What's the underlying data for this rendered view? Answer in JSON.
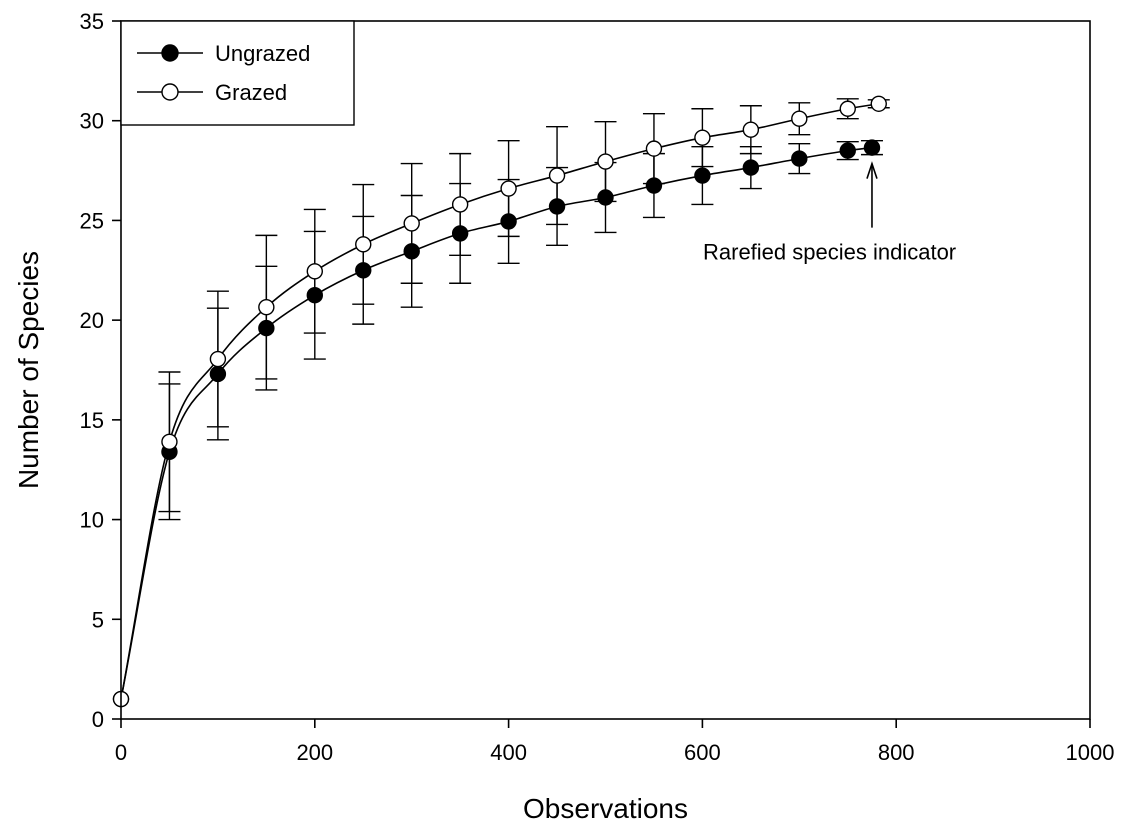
{
  "chart_data": {
    "type": "line",
    "xlabel": "Observations",
    "ylabel": "Number of Species",
    "xlim": [
      0,
      1000
    ],
    "ylim": [
      0,
      35
    ],
    "xticks": [
      0,
      200,
      400,
      600,
      800,
      1000
    ],
    "yticks": [
      0,
      5,
      10,
      15,
      20,
      25,
      30,
      35
    ],
    "grid": false,
    "legend_position": "top-left",
    "series": [
      {
        "name": "Ungrazed",
        "marker": "filled-circle",
        "x": [
          0,
          50,
          100,
          150,
          200,
          250,
          300,
          350,
          400,
          450,
          500,
          550,
          600,
          650,
          700,
          750,
          775
        ],
        "y": [
          1,
          13.4,
          17.3,
          19.6,
          21.25,
          22.5,
          23.45,
          24.35,
          24.95,
          25.7,
          26.15,
          26.75,
          27.25,
          27.65,
          28.1,
          28.5,
          28.65
        ],
        "err": [
          0,
          3.4,
          3.3,
          3.1,
          3.2,
          2.7,
          2.8,
          2.5,
          2.1,
          1.95,
          1.75,
          1.6,
          1.45,
          1.05,
          0.75,
          0.45,
          0.35
        ]
      },
      {
        "name": "Grazed",
        "marker": "open-circle",
        "x": [
          0,
          50,
          100,
          150,
          200,
          250,
          300,
          350,
          400,
          450,
          500,
          550,
          600,
          650,
          700,
          750,
          782
        ],
        "y": [
          1,
          13.9,
          18.05,
          20.65,
          22.45,
          23.8,
          24.85,
          25.8,
          26.6,
          27.25,
          27.95,
          28.6,
          29.15,
          29.55,
          30.1,
          30.6,
          30.85
        ],
        "err": [
          0,
          3.5,
          3.4,
          3.6,
          3.1,
          3.0,
          3.0,
          2.55,
          2.4,
          2.45,
          2.0,
          1.75,
          1.45,
          1.2,
          0.8,
          0.5,
          0.2
        ]
      }
    ],
    "annotations": [
      {
        "text": "Rarefied species indicator",
        "x": 775,
        "y": 28.65
      }
    ]
  }
}
